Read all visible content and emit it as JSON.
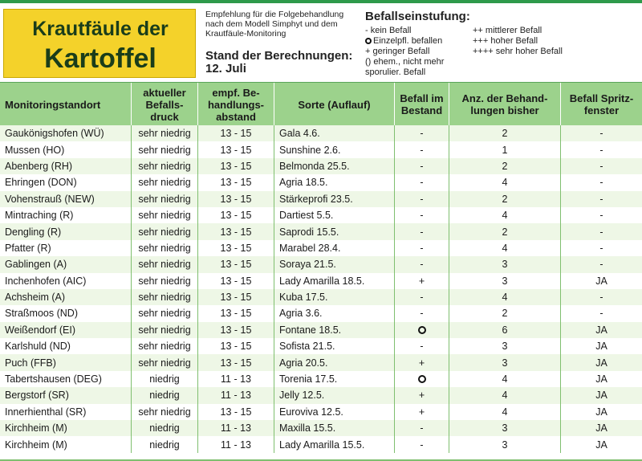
{
  "header": {
    "title_line1": "Krautfäule der",
    "title_line2": "Kartoffel",
    "recommendation": "Empfehlung für die Folgebehandlung nach dem Modell Simphyt und dem Krautfäule-Monitoring",
    "stand_label": "Stand der Berechnungen:",
    "stand_date": "12. Juli"
  },
  "legend": {
    "title": "Befallseinstufung:",
    "items": [
      {
        "symbol": "-",
        "text": "kein Befall"
      },
      {
        "symbol": "++",
        "text": "mittlerer Befall"
      },
      {
        "symbol": "ring",
        "text": "Einzelpfl. befallen"
      },
      {
        "symbol": "+++",
        "text": "hoher Befall"
      },
      {
        "symbol": "+",
        "text": "geringer Befall"
      },
      {
        "symbol": "++++",
        "text": "sehr hoher Befall"
      },
      {
        "symbol": "()",
        "text": "ehem., nicht mehr sporulier. Befall"
      }
    ]
  },
  "table": {
    "columns": [
      "Monitoringstandort",
      "aktueller Befalls-druck",
      "empf. Be-handlungs-abstand",
      "Sorte (Auflauf)",
      "Befall im Bestand",
      "Anz. der Behand-lungen bisher",
      "Befall Spritz-fenster"
    ],
    "rows": [
      [
        "Gaukönigshofen (WÜ)",
        "sehr niedrig",
        "13 - 15",
        "Gala 4.6.",
        "-",
        "2",
        "-"
      ],
      [
        "Mussen (HO)",
        "sehr niedrig",
        "13 - 15",
        "Sunshine 2.6.",
        "-",
        "1",
        "-"
      ],
      [
        "Abenberg (RH)",
        "sehr niedrig",
        "13 - 15",
        "Belmonda 25.5.",
        "-",
        "2",
        "-"
      ],
      [
        "Ehringen (DON)",
        "sehr niedrig",
        "13 - 15",
        "Agria 18.5.",
        "-",
        "4",
        "-"
      ],
      [
        "Vohenstrauß (NEW)",
        "sehr niedrig",
        "13 - 15",
        "Stärkeprofi 23.5.",
        "-",
        "2",
        "-"
      ],
      [
        "Mintraching (R)",
        "sehr niedrig",
        "13 - 15",
        "Dartiest 5.5.",
        "-",
        "4",
        "-"
      ],
      [
        "Dengling (R)",
        "sehr niedrig",
        "13 - 15",
        "Saprodi 15.5.",
        "-",
        "2",
        "-"
      ],
      [
        "Pfatter (R)",
        "sehr niedrig",
        "13 - 15",
        "Marabel 28.4.",
        "-",
        "4",
        "-"
      ],
      [
        "Gablingen (A)",
        "sehr niedrig",
        "13 - 15",
        "Soraya 21.5.",
        "-",
        "3",
        "-"
      ],
      [
        "Inchenhofen (AIC)",
        "sehr niedrig",
        "13 - 15",
        "Lady Amarilla 18.5.",
        "+",
        "3",
        "JA"
      ],
      [
        "Achsheim (A)",
        "sehr niedrig",
        "13 - 15",
        "Kuba 17.5.",
        "-",
        "4",
        "-"
      ],
      [
        "Straßmoos (ND)",
        "sehr niedrig",
        "13 - 15",
        "Agria 3.6.",
        "-",
        "2",
        "-"
      ],
      [
        "Weißendorf (EI)",
        "sehr niedrig",
        "13 - 15",
        "Fontane 18.5.",
        "ring",
        "6",
        "JA"
      ],
      [
        "Karlshuld (ND)",
        "sehr niedrig",
        "13 - 15",
        "Sofista 21.5.",
        "-",
        "3",
        "JA"
      ],
      [
        "Puch (FFB)",
        "sehr niedrig",
        "13 - 15",
        "Agria 20.5.",
        "+",
        "3",
        "JA"
      ],
      [
        "Tabertshausen (DEG)",
        "niedrig",
        "11 - 13",
        "Torenia 17.5.",
        "ring",
        "4",
        "JA"
      ],
      [
        "Bergstorf (SR)",
        "niedrig",
        "11 - 13",
        "Jelly 12.5.",
        "+",
        "4",
        "JA"
      ],
      [
        "Innerhienthal (SR)",
        "sehr niedrig",
        "13 - 15",
        "Euroviva 12.5.",
        "+",
        "4",
        "JA"
      ],
      [
        "Kirchheim (M)",
        "niedrig",
        "11 - 13",
        "Maxilla 15.5.",
        "-",
        "3",
        "JA"
      ],
      [
        "Kirchheim (M)",
        "niedrig",
        "11 - 13",
        "Lady Amarilla 15.5.",
        "-",
        "3",
        "JA"
      ]
    ]
  },
  "colors": {
    "title_bg": "#f4d22a",
    "header_bg": "#9cd28c",
    "row_alt": "#eef7e6",
    "accent_line": "#2e9a4b"
  }
}
